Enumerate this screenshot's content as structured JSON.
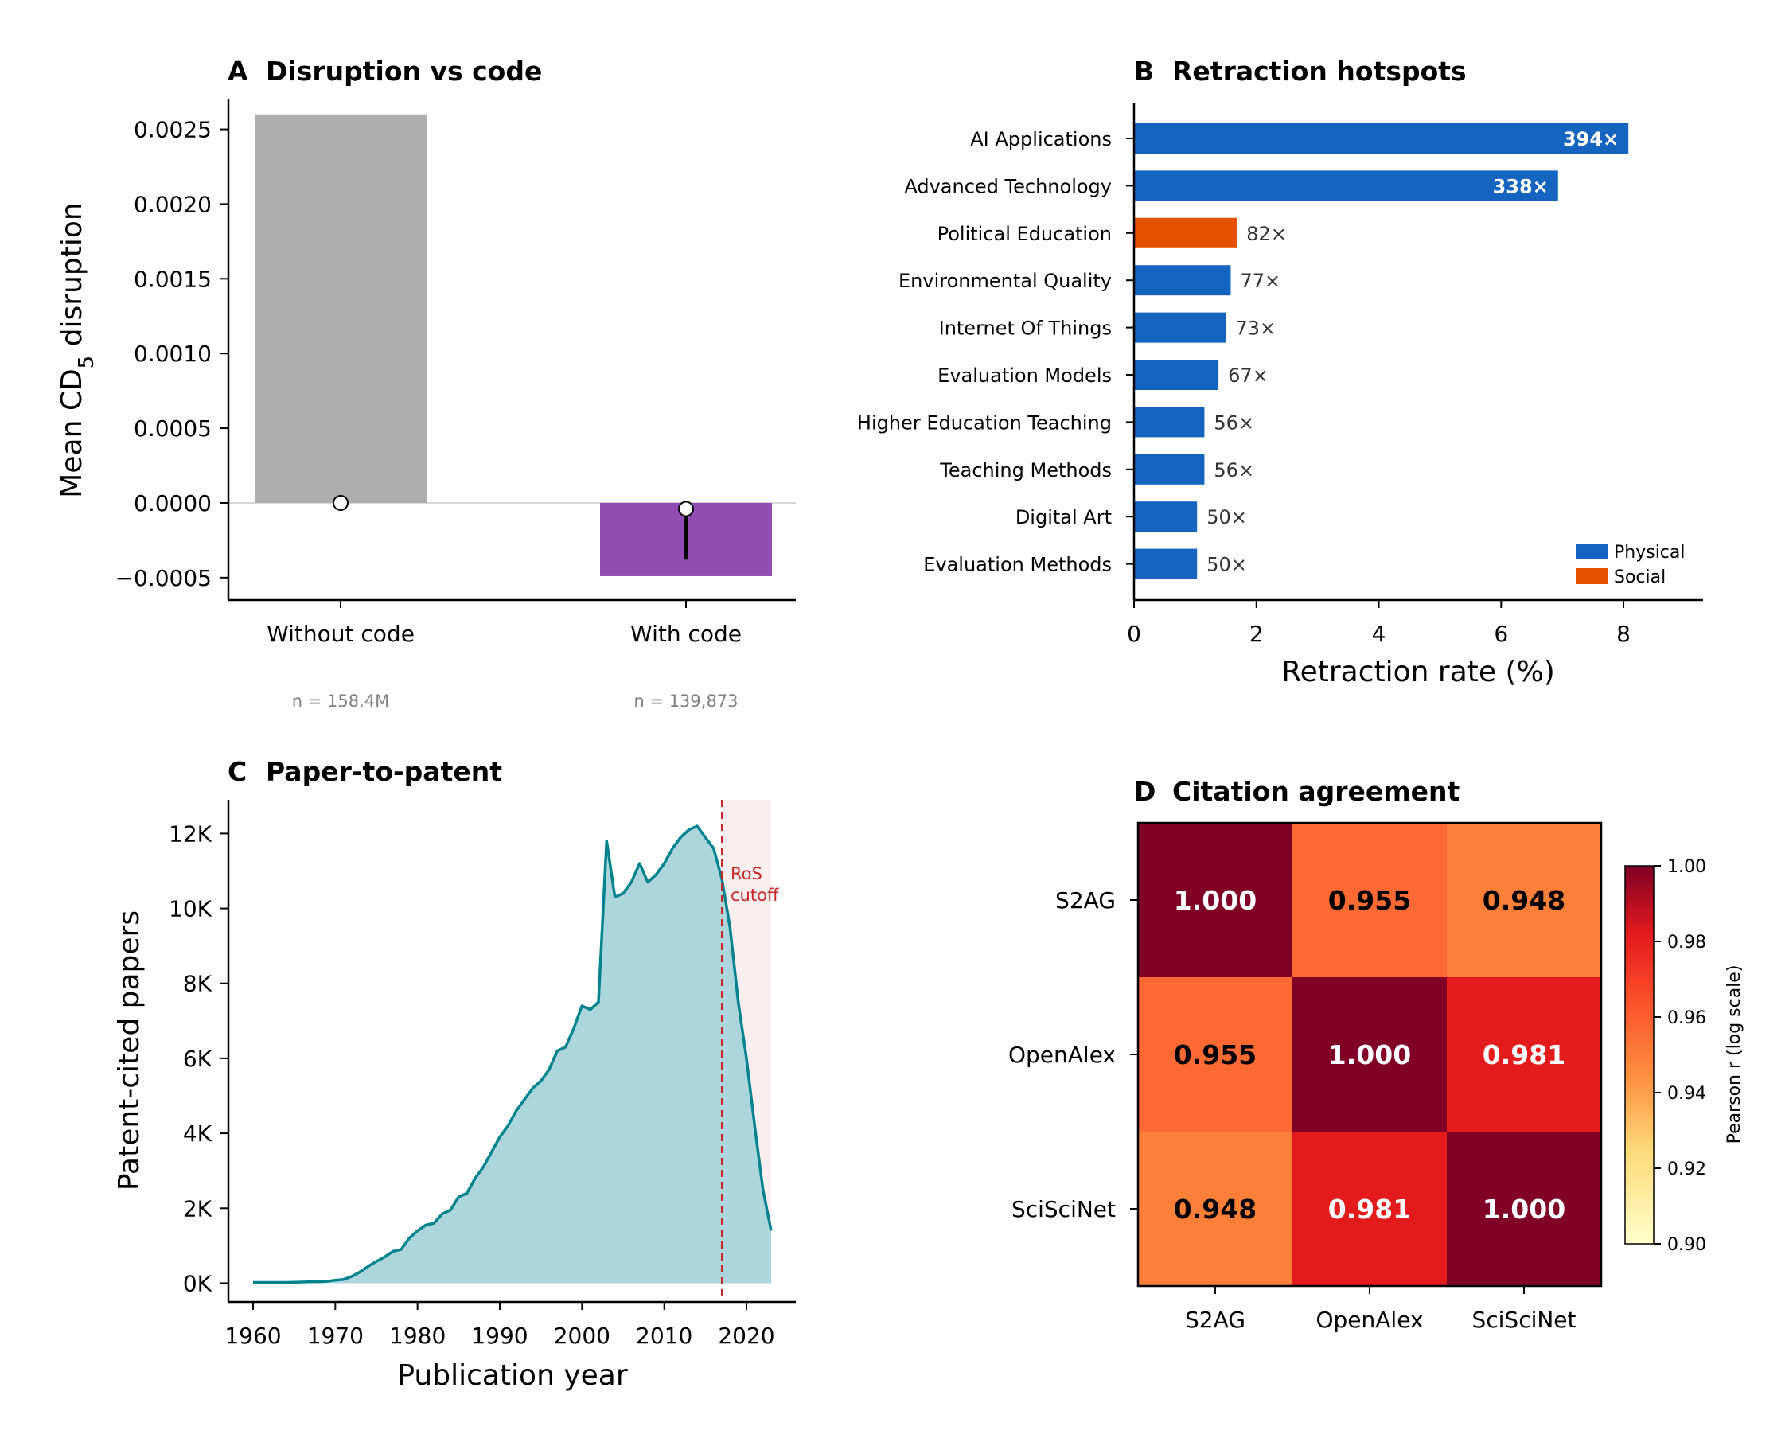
{
  "chart_data": [
    {
      "panel": "A",
      "type": "bar",
      "title": "Disruption vs code",
      "ylabel_main": "Mean CD",
      "ylabel_sub": "5",
      "ylabel_tail": " disruption",
      "ylim": [
        -0.00065,
        0.0027
      ],
      "yticks": [
        0.0025,
        0.002,
        0.0015,
        0.001,
        0.0005,
        0.0,
        -0.0005
      ],
      "ytick_labels": [
        "0.0025",
        "0.0020",
        "0.0015",
        "0.0010",
        "0.0005",
        "0.0000",
        "−0.0005"
      ],
      "categories": [
        "Without code",
        "With code"
      ],
      "values": [
        0.0026,
        -0.00049
      ],
      "medians": [
        0.0,
        -4e-05
      ],
      "whisker_low": [
        0.0,
        -0.00038
      ],
      "sample_sizes": [
        "n = 158.4M",
        "n = 139,873"
      ],
      "colors": [
        "#adadad",
        "#924db5"
      ]
    },
    {
      "panel": "B",
      "type": "bar",
      "orientation": "horizontal",
      "title": "Retraction hotspots",
      "xlabel": "Retraction rate (%)",
      "xlim": [
        0,
        9.3
      ],
      "xticks": [
        0,
        2,
        4,
        6,
        8
      ],
      "xtick_labels": [
        "0",
        "2",
        "4",
        "6",
        "8"
      ],
      "categories": [
        "AI Applications",
        "Advanced Technology",
        "Political Education",
        "Environmental Quality",
        "Internet Of Things",
        "Evaluation Models",
        "Higher Education Teaching",
        "Teaching Methods",
        "Digital Art",
        "Evaluation Methods"
      ],
      "values": [
        8.08,
        6.93,
        1.68,
        1.58,
        1.5,
        1.38,
        1.15,
        1.15,
        1.03,
        1.03
      ],
      "annotations": [
        "394×",
        "338×",
        "82×",
        "77×",
        "73×",
        "67×",
        "56×",
        "56×",
        "50×",
        "50×"
      ],
      "groups": [
        "Physical",
        "Physical",
        "Social",
        "Physical",
        "Physical",
        "Physical",
        "Physical",
        "Physical",
        "Physical",
        "Physical"
      ],
      "legend": [
        {
          "name": "Physical",
          "color": "#1565c0"
        },
        {
          "name": "Social",
          "color": "#e65100"
        }
      ],
      "legend_position": "lower-right"
    },
    {
      "panel": "C",
      "type": "area",
      "title": "Paper-to-patent",
      "xlabel": "Publication year",
      "ylabel": "Patent-cited papers",
      "xlim": [
        1957,
        2026
      ],
      "ylim": [
        -500,
        12900
      ],
      "xticks": [
        1960,
        1970,
        1980,
        1990,
        2000,
        2010,
        2020
      ],
      "xtick_labels": [
        "1960",
        "1970",
        "1980",
        "1990",
        "2000",
        "2010",
        "2020"
      ],
      "yticks": [
        0,
        2000,
        4000,
        6000,
        8000,
        10000,
        12000
      ],
      "ytick_labels": [
        "0K",
        "2K",
        "4K",
        "6K",
        "8K",
        "10K",
        "12K"
      ],
      "x": [
        1960,
        1961,
        1962,
        1963,
        1964,
        1965,
        1966,
        1967,
        1968,
        1969,
        1970,
        1971,
        1972,
        1973,
        1974,
        1975,
        1976,
        1977,
        1978,
        1979,
        1980,
        1981,
        1982,
        1983,
        1984,
        1985,
        1986,
        1987,
        1988,
        1989,
        1990,
        1991,
        1992,
        1993,
        1994,
        1995,
        1996,
        1997,
        1998,
        1999,
        2000,
        2001,
        2002,
        2003,
        2004,
        2005,
        2006,
        2007,
        2008,
        2009,
        2010,
        2011,
        2012,
        2013,
        2014,
        2015,
        2016,
        2017,
        2018,
        2019,
        2020,
        2021,
        2022,
        2023
      ],
      "y": [
        20,
        20,
        20,
        20,
        20,
        25,
        30,
        40,
        40,
        50,
        80,
        100,
        180,
        300,
        450,
        580,
        700,
        850,
        900,
        1200,
        1400,
        1550,
        1600,
        1850,
        1950,
        2300,
        2400,
        2800,
        3100,
        3500,
        3900,
        4200,
        4600,
        4900,
        5200,
        5400,
        5700,
        6200,
        6300,
        6800,
        7400,
        7300,
        7500,
        11800,
        10300,
        10400,
        10700,
        11200,
        10700,
        10900,
        11200,
        11600,
        11900,
        12100,
        12200,
        11900,
        11600,
        10800,
        9500,
        7500,
        6000,
        4200,
        2500,
        1400
      ],
      "annotation": {
        "text_line1": "RoS",
        "text_line2": "cutoff",
        "x": 2017
      },
      "shaded_range": [
        2017,
        2023
      ],
      "line_color": "#00838f",
      "fill_color": "#a8d4da",
      "cutoff_color": "#c62828"
    },
    {
      "panel": "D",
      "type": "heatmap",
      "title": "Citation agreement",
      "row_labels": [
        "S2AG",
        "OpenAlex",
        "SciSciNet"
      ],
      "col_labels": [
        "S2AG",
        "OpenAlex",
        "SciSciNet"
      ],
      "values": [
        [
          1.0,
          0.955,
          0.948
        ],
        [
          0.955,
          1.0,
          0.981
        ],
        [
          0.948,
          0.981,
          1.0
        ]
      ],
      "value_labels": [
        [
          "1.000",
          "0.955",
          "0.948"
        ],
        [
          "0.955",
          "1.000",
          "0.981"
        ],
        [
          "0.948",
          "0.981",
          "1.000"
        ]
      ],
      "colorbar": {
        "label": "Pearson r (log scale)",
        "range": [
          0.9,
          1.0
        ],
        "ticks": [
          1.0,
          0.98,
          0.96,
          0.94,
          0.92,
          0.9
        ],
        "tick_labels": [
          "1.00",
          "0.98",
          "0.96",
          "0.94",
          "0.92",
          "0.90"
        ]
      }
    }
  ]
}
